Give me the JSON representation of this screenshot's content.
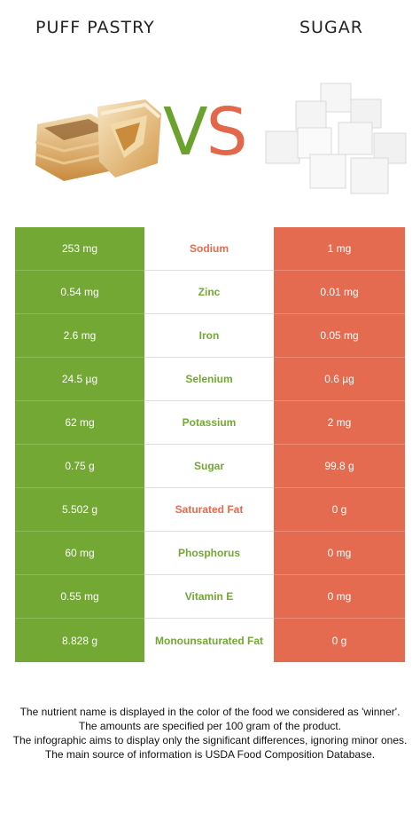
{
  "header": {
    "left_title": "PUFF PASTRY",
    "right_title": "SUGAR",
    "vs_v": "V",
    "vs_s": "S"
  },
  "colors": {
    "left_food": "#72a833",
    "right_food": "#e56b50"
  },
  "rows": [
    {
      "left": "253 mg",
      "nutrient": "Sodium",
      "right": "1 mg",
      "winner": "right"
    },
    {
      "left": "0.54 mg",
      "nutrient": "Zinc",
      "right": "0.01 mg",
      "winner": "left"
    },
    {
      "left": "2.6 mg",
      "nutrient": "Iron",
      "right": "0.05 mg",
      "winner": "left"
    },
    {
      "left": "24.5 µg",
      "nutrient": "Selenium",
      "right": "0.6 µg",
      "winner": "left"
    },
    {
      "left": "62 mg",
      "nutrient": "Potassium",
      "right": "2 mg",
      "winner": "left"
    },
    {
      "left": "0.75 g",
      "nutrient": "Sugar",
      "right": "99.8 g",
      "winner": "left"
    },
    {
      "left": "5.502 g",
      "nutrient": "Saturated Fat",
      "right": "0 g",
      "winner": "right"
    },
    {
      "left": "60 mg",
      "nutrient": "Phosphorus",
      "right": "0 mg",
      "winner": "left"
    },
    {
      "left": "0.55 mg",
      "nutrient": "Vitamin E",
      "right": "0 mg",
      "winner": "left"
    },
    {
      "left": "8.828 g",
      "nutrient": "Monounsaturated Fat",
      "right": "0 g",
      "winner": "left"
    }
  ],
  "footnote": {
    "line1": "The nutrient name is displayed in the color of the food we considered as 'winner'.",
    "line2": "The amounts are specified per 100 gram of the product.",
    "line3": "The infographic aims to display only the significant differences, ignoring minor ones.",
    "line4": "The main source of information is USDA Food Composition Database."
  }
}
